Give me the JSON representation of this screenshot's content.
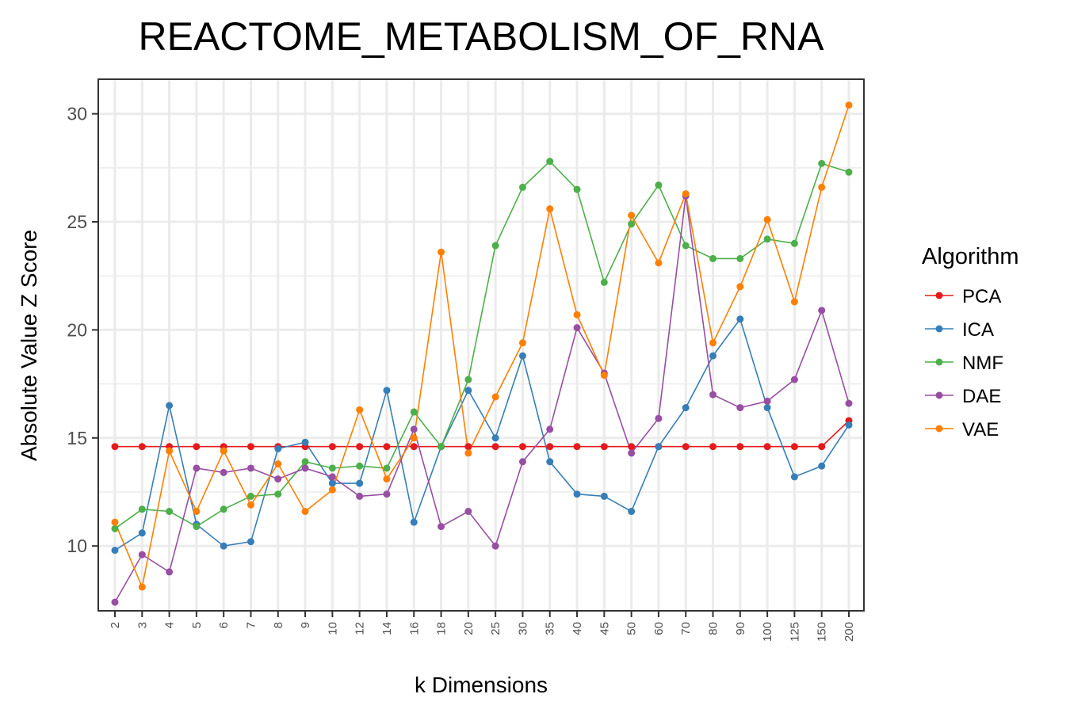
{
  "chart_data": {
    "type": "line",
    "title": "REACTOME_METABOLISM_OF_RNA",
    "xlabel": "k Dimensions",
    "ylabel": "Absolute Value Z Score",
    "categories": [
      "2",
      "3",
      "4",
      "5",
      "6",
      "7",
      "8",
      "9",
      "10",
      "12",
      "14",
      "16",
      "18",
      "20",
      "25",
      "30",
      "35",
      "40",
      "45",
      "50",
      "60",
      "70",
      "80",
      "90",
      "100",
      "125",
      "150",
      "200"
    ],
    "ylim": [
      7.0,
      31.6
    ],
    "yticks": [
      10,
      15,
      20,
      25,
      30
    ],
    "ytick_labels": [
      "10",
      "15",
      "20",
      "25",
      "30"
    ],
    "grid": true,
    "legend": {
      "title": "Algorithm",
      "position": "right"
    },
    "series": [
      {
        "name": "PCA",
        "color": "#e41a1c",
        "values": [
          14.6,
          14.6,
          14.6,
          14.6,
          14.6,
          14.6,
          14.6,
          14.6,
          14.6,
          14.6,
          14.6,
          14.6,
          14.6,
          14.6,
          14.6,
          14.6,
          14.6,
          14.6,
          14.6,
          14.6,
          14.6,
          14.6,
          14.6,
          14.6,
          14.6,
          14.6,
          14.6,
          15.8
        ]
      },
      {
        "name": "ICA",
        "color": "#377eb8",
        "values": [
          9.8,
          10.6,
          16.5,
          11.0,
          10.0,
          10.2,
          14.5,
          14.8,
          12.9,
          12.9,
          17.2,
          11.1,
          14.6,
          17.2,
          15.0,
          18.8,
          13.9,
          12.4,
          12.3,
          11.6,
          14.6,
          16.4,
          18.8,
          20.5,
          16.4,
          13.2,
          13.7,
          15.6
        ]
      },
      {
        "name": "NMF",
        "color": "#4daf4a",
        "values": [
          10.8,
          11.7,
          11.6,
          10.9,
          11.7,
          12.3,
          12.4,
          13.9,
          13.6,
          13.7,
          13.6,
          16.2,
          14.6,
          17.7,
          23.9,
          26.6,
          27.8,
          26.5,
          22.2,
          24.9,
          26.7,
          23.9,
          23.3,
          23.3,
          24.2,
          24.0,
          27.7,
          27.3
        ]
      },
      {
        "name": "DAE",
        "color": "#984ea3",
        "values": [
          7.4,
          9.6,
          8.8,
          13.6,
          13.4,
          13.6,
          13.1,
          13.6,
          13.2,
          12.3,
          12.4,
          15.4,
          10.9,
          11.6,
          10.0,
          13.9,
          15.4,
          20.1,
          18.0,
          14.3,
          15.9,
          26.2,
          17.0,
          16.4,
          16.7,
          17.7,
          20.9,
          16.6
        ]
      },
      {
        "name": "VAE",
        "color": "#ff7f00",
        "values": [
          11.1,
          8.1,
          14.4,
          11.6,
          14.4,
          11.9,
          13.8,
          11.6,
          12.6,
          16.3,
          13.1,
          15.0,
          23.6,
          14.3,
          16.9,
          19.4,
          25.6,
          20.7,
          17.9,
          25.3,
          23.1,
          26.3,
          19.4,
          22.0,
          25.1,
          21.3,
          26.6,
          30.4
        ]
      }
    ]
  }
}
